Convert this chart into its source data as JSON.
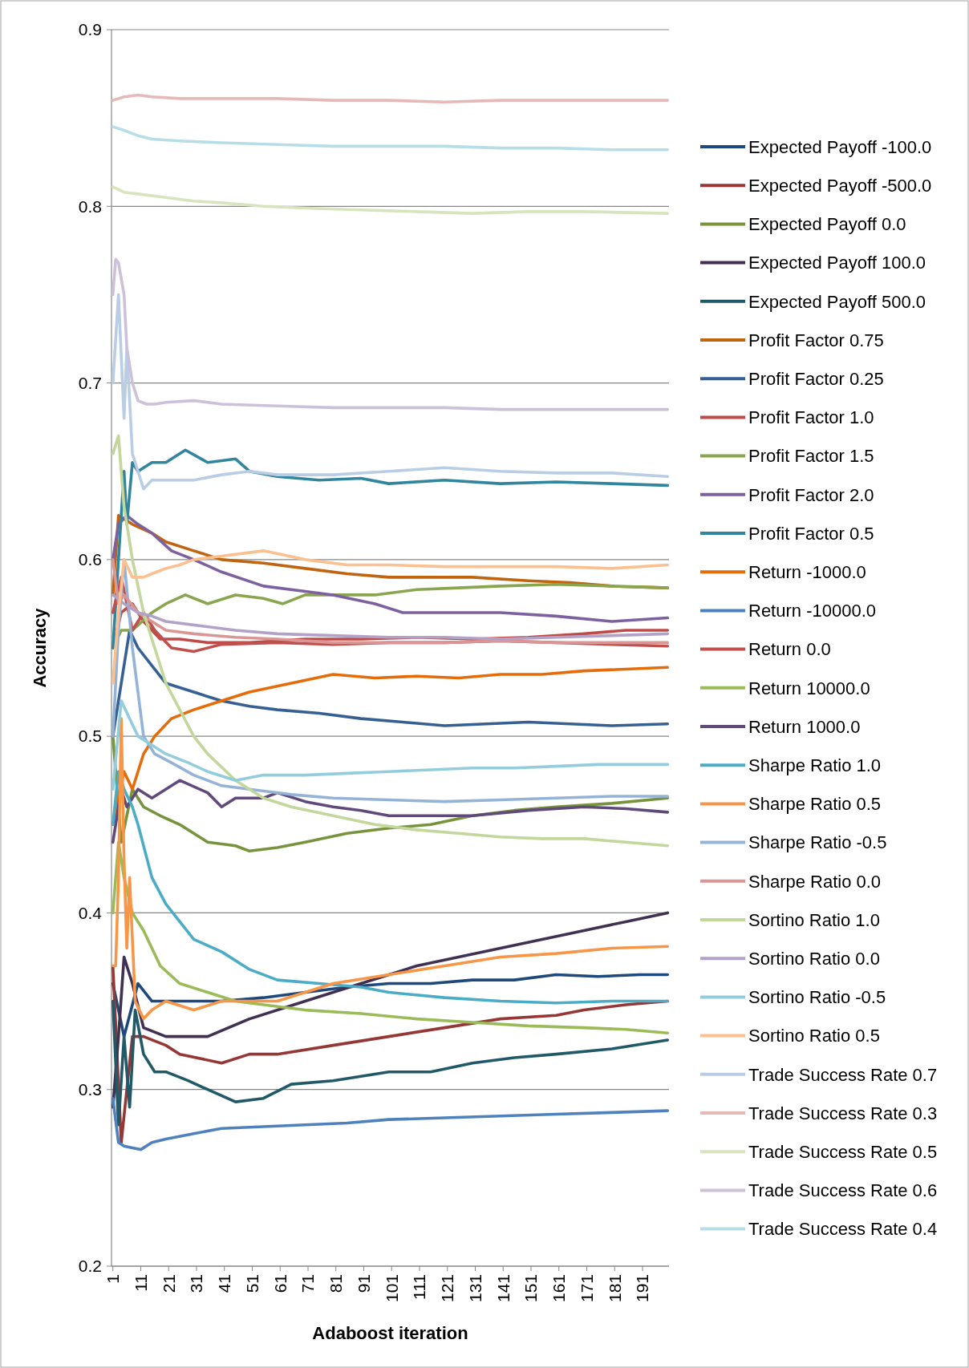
{
  "chart_data": {
    "type": "line",
    "xlabel": "Adaboost iteration",
    "ylabel": "Accuracy",
    "xlim": [
      0.5,
      200.5
    ],
    "xticks": [
      1,
      11,
      21,
      31,
      41,
      51,
      61,
      71,
      81,
      91,
      101,
      111,
      121,
      131,
      141,
      151,
      161,
      171,
      181,
      191
    ],
    "ylim": [
      0.2,
      0.9
    ],
    "yticks": [
      {
        "value": 0.2,
        "label": "0.2"
      },
      {
        "value": 0.3,
        "label": "0.3"
      },
      {
        "value": 0.4,
        "label": "0.4"
      },
      {
        "value": 0.5,
        "label": "0.5"
      },
      {
        "value": 0.6,
        "label": "0.6"
      },
      {
        "value": 0.7,
        "label": "0.7"
      },
      {
        "value": 0.8,
        "label": "0.8"
      },
      {
        "value": 0.9,
        "label": "0.9"
      }
    ],
    "grid": "y",
    "legend": "right",
    "line_style": "solid",
    "marker": "none",
    "series": [
      {
        "name": "Expected Payoff -100.0",
        "color": "#1f497d",
        "x": [
          1,
          5,
          10,
          15,
          25,
          40,
          55,
          70,
          85,
          100,
          115,
          130,
          145,
          160,
          175,
          190,
          200
        ],
        "values": [
          0.36,
          0.33,
          0.36,
          0.35,
          0.35,
          0.35,
          0.352,
          0.355,
          0.358,
          0.36,
          0.36,
          0.362,
          0.362,
          0.365,
          0.364,
          0.365,
          0.365
        ]
      },
      {
        "name": "Expected Payoff -500.0",
        "color": "#953735",
        "x": [
          1,
          4,
          8,
          12,
          20,
          25,
          40,
          50,
          60,
          80,
          100,
          120,
          140,
          160,
          170,
          185,
          200
        ],
        "values": [
          0.37,
          0.27,
          0.33,
          0.33,
          0.325,
          0.32,
          0.315,
          0.32,
          0.32,
          0.325,
          0.33,
          0.335,
          0.34,
          0.342,
          0.345,
          0.348,
          0.35
        ]
      },
      {
        "name": "Expected Payoff 0.0",
        "color": "#77933c",
        "x": [
          1,
          4,
          8,
          12,
          18,
          25,
          35,
          45,
          50,
          60,
          70,
          85,
          100,
          115,
          130,
          145,
          160,
          180,
          200
        ],
        "values": [
          0.5,
          0.44,
          0.47,
          0.46,
          0.455,
          0.45,
          0.44,
          0.438,
          0.435,
          0.437,
          0.44,
          0.445,
          0.448,
          0.45,
          0.455,
          0.458,
          0.46,
          0.462,
          0.465
        ]
      },
      {
        "name": "Expected Payoff 100.0",
        "color": "#403152",
        "x": [
          1,
          3,
          5,
          8,
          12,
          20,
          35,
          50,
          70,
          90,
          110,
          125,
          140,
          155,
          170,
          185,
          200
        ],
        "values": [
          0.29,
          0.33,
          0.375,
          0.36,
          0.335,
          0.33,
          0.33,
          0.34,
          0.35,
          0.36,
          0.37,
          0.375,
          0.38,
          0.385,
          0.39,
          0.395,
          0.4
        ]
      },
      {
        "name": "Expected Payoff 500.0",
        "color": "#215968",
        "x": [
          1,
          3,
          5,
          7,
          9,
          12,
          16,
          20,
          28,
          35,
          45,
          55,
          65,
          80,
          100,
          115,
          130,
          145,
          160,
          180,
          200
        ],
        "values": [
          0.35,
          0.28,
          0.33,
          0.29,
          0.345,
          0.32,
          0.31,
          0.31,
          0.305,
          0.3,
          0.293,
          0.295,
          0.303,
          0.305,
          0.31,
          0.31,
          0.315,
          0.318,
          0.32,
          0.323,
          0.328
        ]
      },
      {
        "name": "Profit Factor 0.75",
        "color": "#c0640f",
        "x": [
          1,
          3,
          8,
          15,
          20,
          30,
          40,
          55,
          70,
          85,
          100,
          115,
          130,
          150,
          165,
          180,
          200
        ],
        "values": [
          0.58,
          0.625,
          0.62,
          0.615,
          0.61,
          0.605,
          0.6,
          0.598,
          0.595,
          0.592,
          0.59,
          0.59,
          0.59,
          0.588,
          0.587,
          0.585,
          0.584
        ]
      },
      {
        "name": "Profit Factor 0.25",
        "color": "#376092",
        "x": [
          1,
          4,
          7,
          10,
          15,
          20,
          30,
          40,
          50,
          60,
          75,
          90,
          105,
          120,
          135,
          150,
          165,
          180,
          200
        ],
        "values": [
          0.5,
          0.53,
          0.56,
          0.55,
          0.54,
          0.53,
          0.525,
          0.52,
          0.517,
          0.515,
          0.513,
          0.51,
          0.508,
          0.506,
          0.507,
          0.508,
          0.507,
          0.506,
          0.507
        ]
      },
      {
        "name": "Profit Factor 1.0",
        "color": "#be4b48",
        "x": [
          1,
          4,
          8,
          12,
          18,
          25,
          35,
          50,
          70,
          90,
          110,
          130,
          150,
          170,
          185,
          200
        ],
        "values": [
          0.55,
          0.57,
          0.575,
          0.565,
          0.555,
          0.555,
          0.553,
          0.553,
          0.555,
          0.555,
          0.556,
          0.555,
          0.556,
          0.558,
          0.56,
          0.56
        ]
      },
      {
        "name": "Profit Factor 1.5",
        "color": "#89a54e",
        "x": [
          1,
          4,
          8,
          15,
          20,
          27,
          35,
          45,
          55,
          62,
          70,
          80,
          95,
          110,
          125,
          140,
          160,
          180,
          200
        ],
        "values": [
          0.55,
          0.56,
          0.56,
          0.57,
          0.575,
          0.58,
          0.575,
          0.58,
          0.578,
          0.575,
          0.58,
          0.58,
          0.58,
          0.583,
          0.584,
          0.585,
          0.586,
          0.585,
          0.584
        ]
      },
      {
        "name": "Profit Factor 2.0",
        "color": "#7d60a0",
        "x": [
          1,
          3,
          6,
          10,
          15,
          22,
          30,
          40,
          55,
          70,
          80,
          95,
          105,
          120,
          140,
          160,
          180,
          200
        ],
        "values": [
          0.6,
          0.62,
          0.625,
          0.62,
          0.615,
          0.605,
          0.6,
          0.593,
          0.585,
          0.582,
          0.58,
          0.575,
          0.57,
          0.57,
          0.57,
          0.568,
          0.565,
          0.567
        ]
      },
      {
        "name": "Profit Factor 0.5",
        "color": "#31859c",
        "x": [
          1,
          3,
          5,
          6,
          8,
          10,
          15,
          20,
          27,
          35,
          45,
          50,
          60,
          75,
          90,
          100,
          120,
          140,
          160,
          180,
          200
        ],
        "values": [
          0.55,
          0.6,
          0.65,
          0.62,
          0.655,
          0.65,
          0.655,
          0.655,
          0.662,
          0.655,
          0.657,
          0.65,
          0.647,
          0.645,
          0.646,
          0.643,
          0.645,
          0.643,
          0.644,
          0.643,
          0.642
        ]
      },
      {
        "name": "Return -1000.0",
        "color": "#e46c0a",
        "x": [
          1,
          5,
          8,
          12,
          16,
          22,
          30,
          40,
          50,
          65,
          80,
          95,
          110,
          125,
          140,
          155,
          170,
          185,
          200
        ],
        "values": [
          0.45,
          0.48,
          0.47,
          0.49,
          0.5,
          0.51,
          0.515,
          0.52,
          0.525,
          0.53,
          0.535,
          0.533,
          0.534,
          0.533,
          0.535,
          0.535,
          0.537,
          0.538,
          0.539
        ]
      },
      {
        "name": "Return -10000.0",
        "color": "#4f81bd",
        "x": [
          1,
          3,
          5,
          8,
          11,
          15,
          20,
          30,
          40,
          55,
          70,
          85,
          100,
          120,
          140,
          160,
          180,
          200
        ],
        "values": [
          0.295,
          0.27,
          0.268,
          0.267,
          0.266,
          0.27,
          0.272,
          0.275,
          0.278,
          0.279,
          0.28,
          0.281,
          0.283,
          0.284,
          0.285,
          0.286,
          0.287,
          0.288
        ]
      },
      {
        "name": "Return 0.0",
        "color": "#c0504d",
        "x": [
          1,
          4,
          8,
          12,
          16,
          22,
          30,
          40,
          60,
          80,
          100,
          120,
          140,
          160,
          180,
          200
        ],
        "values": [
          0.57,
          0.59,
          0.56,
          0.57,
          0.56,
          0.55,
          0.548,
          0.552,
          0.553,
          0.552,
          0.553,
          0.553,
          0.554,
          0.553,
          0.552,
          0.551
        ]
      },
      {
        "name": "Return 10000.0",
        "color": "#9bbb59",
        "x": [
          1,
          3,
          5,
          8,
          12,
          18,
          25,
          35,
          45,
          55,
          70,
          90,
          110,
          130,
          150,
          170,
          185,
          200
        ],
        "values": [
          0.4,
          0.44,
          0.42,
          0.4,
          0.39,
          0.37,
          0.36,
          0.355,
          0.35,
          0.348,
          0.345,
          0.343,
          0.34,
          0.338,
          0.336,
          0.335,
          0.334,
          0.332
        ]
      },
      {
        "name": "Return 1000.0",
        "color": "#604a7b",
        "x": [
          1,
          4,
          6,
          10,
          15,
          25,
          35,
          40,
          45,
          55,
          60,
          70,
          80,
          90,
          100,
          115,
          130,
          150,
          170,
          185,
          200
        ],
        "values": [
          0.44,
          0.47,
          0.46,
          0.47,
          0.465,
          0.475,
          0.468,
          0.46,
          0.465,
          0.465,
          0.468,
          0.463,
          0.46,
          0.458,
          0.455,
          0.455,
          0.455,
          0.458,
          0.46,
          0.459,
          0.457
        ]
      },
      {
        "name": "Sharpe Ratio 1.0",
        "color": "#4bacc6",
        "x": [
          1,
          3,
          5,
          8,
          10,
          15,
          20,
          25,
          30,
          40,
          50,
          60,
          75,
          90,
          100,
          120,
          140,
          160,
          180,
          200
        ],
        "values": [
          0.45,
          0.48,
          0.47,
          0.46,
          0.45,
          0.42,
          0.405,
          0.395,
          0.385,
          0.378,
          0.368,
          0.362,
          0.36,
          0.358,
          0.355,
          0.352,
          0.35,
          0.349,
          0.35,
          0.35
        ]
      },
      {
        "name": "Sharpe Ratio 0.5",
        "color": "#f79646",
        "x": [
          1,
          2,
          3,
          4,
          5,
          6,
          7,
          9,
          12,
          15,
          20,
          30,
          40,
          50,
          60,
          70,
          80,
          100,
          120,
          140,
          160,
          180,
          200
        ],
        "values": [
          0.37,
          0.37,
          0.42,
          0.51,
          0.43,
          0.38,
          0.42,
          0.35,
          0.34,
          0.345,
          0.35,
          0.345,
          0.35,
          0.35,
          0.35,
          0.355,
          0.36,
          0.365,
          0.37,
          0.375,
          0.377,
          0.38,
          0.381
        ]
      },
      {
        "name": "Sharpe Ratio -0.5",
        "color": "#95b3d7",
        "x": [
          1,
          3,
          5,
          8,
          12,
          16,
          22,
          30,
          40,
          50,
          65,
          80,
          100,
          120,
          140,
          160,
          180,
          200
        ],
        "values": [
          0.5,
          0.56,
          0.6,
          0.55,
          0.5,
          0.49,
          0.485,
          0.478,
          0.472,
          0.47,
          0.467,
          0.465,
          0.464,
          0.463,
          0.464,
          0.465,
          0.466,
          0.466
        ]
      },
      {
        "name": "Sharpe Ratio 0.0",
        "color": "#d99694",
        "x": [
          1,
          3,
          5,
          10,
          15,
          20,
          30,
          45,
          60,
          80,
          100,
          120,
          140,
          160,
          180,
          200
        ],
        "values": [
          0.6,
          0.575,
          0.58,
          0.57,
          0.565,
          0.56,
          0.558,
          0.556,
          0.555,
          0.553,
          0.553,
          0.553,
          0.554,
          0.553,
          0.553,
          0.553
        ]
      },
      {
        "name": "Sortino Ratio 1.0",
        "color": "#c3d69b",
        "x": [
          1,
          3,
          5,
          8,
          12,
          16,
          20,
          25,
          30,
          35,
          45,
          55,
          65,
          80,
          95,
          110,
          125,
          140,
          155,
          170,
          185,
          200
        ],
        "values": [
          0.66,
          0.67,
          0.63,
          0.6,
          0.57,
          0.55,
          0.53,
          0.515,
          0.5,
          0.49,
          0.475,
          0.465,
          0.46,
          0.455,
          0.45,
          0.447,
          0.445,
          0.443,
          0.442,
          0.442,
          0.44,
          0.438
        ]
      },
      {
        "name": "Sortino Ratio 0.0",
        "color": "#b3a2c7",
        "x": [
          1,
          5,
          10,
          15,
          20,
          30,
          45,
          60,
          80,
          100,
          120,
          140,
          160,
          180,
          200
        ],
        "values": [
          0.58,
          0.575,
          0.57,
          0.568,
          0.565,
          0.563,
          0.56,
          0.558,
          0.557,
          0.556,
          0.556,
          0.555,
          0.556,
          0.557,
          0.558
        ]
      },
      {
        "name": "Sortino Ratio -0.5",
        "color": "#93cddd",
        "x": [
          1,
          4,
          7,
          10,
          15,
          20,
          28,
          35,
          45,
          55,
          70,
          85,
          100,
          115,
          130,
          145,
          160,
          175,
          190,
          200
        ],
        "values": [
          0.47,
          0.52,
          0.51,
          0.5,
          0.495,
          0.49,
          0.485,
          0.48,
          0.475,
          0.478,
          0.478,
          0.479,
          0.48,
          0.481,
          0.482,
          0.482,
          0.483,
          0.484,
          0.484,
          0.484
        ]
      },
      {
        "name": "Sortino Ratio 0.5",
        "color": "#fac090",
        "x": [
          1,
          3,
          5,
          8,
          12,
          15,
          20,
          25,
          30,
          40,
          55,
          70,
          85,
          100,
          120,
          140,
          160,
          180,
          200
        ],
        "values": [
          0.53,
          0.57,
          0.6,
          0.59,
          0.59,
          0.592,
          0.595,
          0.597,
          0.6,
          0.602,
          0.605,
          0.6,
          0.597,
          0.597,
          0.596,
          0.596,
          0.596,
          0.595,
          0.597
        ]
      },
      {
        "name": "Trade Success Rate 0.7",
        "color": "#b9cde5",
        "x": [
          1,
          3,
          5,
          6,
          8,
          10,
          12,
          15,
          20,
          30,
          40,
          50,
          60,
          80,
          100,
          120,
          140,
          160,
          180,
          200
        ],
        "values": [
          0.7,
          0.75,
          0.68,
          0.72,
          0.66,
          0.65,
          0.64,
          0.645,
          0.645,
          0.645,
          0.648,
          0.65,
          0.648,
          0.648,
          0.65,
          0.652,
          0.65,
          0.649,
          0.649,
          0.647
        ]
      },
      {
        "name": "Trade Success Rate 0.3",
        "color": "#e6b9b8",
        "x": [
          1,
          5,
          10,
          15,
          25,
          40,
          60,
          80,
          100,
          120,
          140,
          160,
          180,
          200
        ],
        "values": [
          0.86,
          0.862,
          0.863,
          0.862,
          0.861,
          0.861,
          0.861,
          0.86,
          0.86,
          0.859,
          0.86,
          0.86,
          0.86,
          0.86
        ]
      },
      {
        "name": "Trade Success Rate 0.5",
        "color": "#d7e4bd",
        "x": [
          1,
          5,
          10,
          20,
          30,
          40,
          55,
          70,
          90,
          110,
          130,
          150,
          170,
          200
        ],
        "values": [
          0.811,
          0.808,
          0.807,
          0.805,
          0.803,
          0.802,
          0.8,
          0.799,
          0.798,
          0.797,
          0.796,
          0.797,
          0.797,
          0.796
        ]
      },
      {
        "name": "Trade Success Rate 0.6",
        "color": "#ccc1da",
        "x": [
          1,
          2,
          3,
          5,
          6,
          8,
          10,
          13,
          16,
          20,
          30,
          40,
          60,
          80,
          100,
          120,
          140,
          160,
          180,
          200
        ],
        "values": [
          0.75,
          0.77,
          0.768,
          0.75,
          0.72,
          0.7,
          0.69,
          0.688,
          0.688,
          0.689,
          0.69,
          0.688,
          0.687,
          0.686,
          0.686,
          0.686,
          0.685,
          0.685,
          0.685,
          0.685
        ]
      },
      {
        "name": "Trade Success Rate 0.4",
        "color": "#b7dee8",
        "x": [
          1,
          5,
          10,
          15,
          25,
          40,
          60,
          80,
          100,
          120,
          140,
          160,
          180,
          200
        ],
        "values": [
          0.845,
          0.843,
          0.84,
          0.838,
          0.837,
          0.836,
          0.835,
          0.834,
          0.834,
          0.834,
          0.833,
          0.833,
          0.832,
          0.832
        ]
      }
    ]
  }
}
